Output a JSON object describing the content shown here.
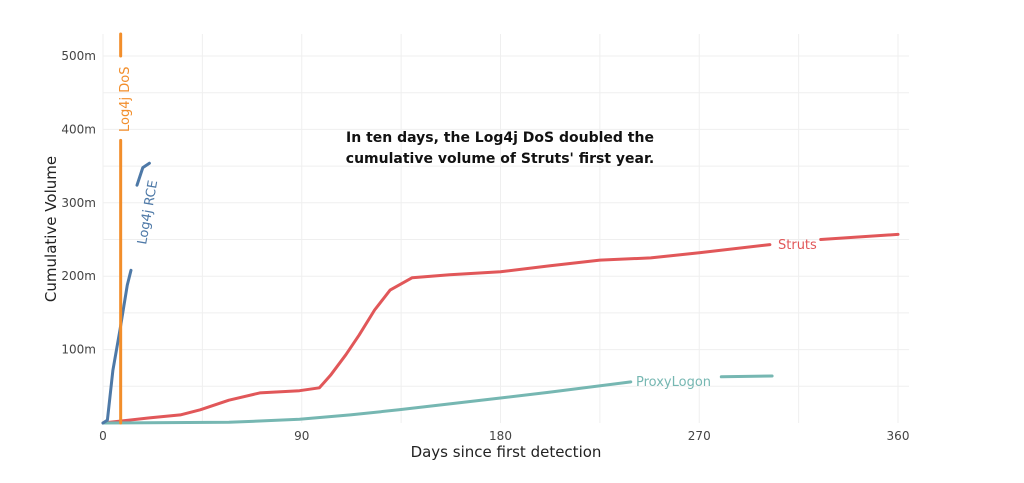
{
  "chart_data": {
    "type": "line",
    "xlabel": "Days since first detection",
    "ylabel": "Cumulative Volume",
    "xlim": [
      0,
      365
    ],
    "ylim": [
      0,
      530000000
    ],
    "xticks": [
      0,
      90,
      180,
      270,
      360
    ],
    "yticks": [
      100000000,
      200000000,
      300000000,
      400000000,
      500000000
    ],
    "ytick_labels": [
      "100m",
      "200m",
      "300m",
      "400m",
      "500m"
    ],
    "grid": true,
    "annotation": "In ten days, the Log4j DoS doubled the cumulative volume of Struts' first year.",
    "annotation_lines": [
      "In ten days, the Log4j DoS doubled the",
      "cumulative volume of Struts' first year."
    ],
    "series": [
      {
        "name": "Struts",
        "color": "#e15759",
        "x": [
          0,
          21,
          35,
          44,
          57,
          71,
          89,
          98,
          103,
          110,
          116,
          123,
          130,
          140,
          157,
          180,
          202,
          225,
          248,
          270,
          302,
          325,
          360
        ],
        "y": [
          0,
          7000000.0,
          11000000.0,
          18000000.0,
          31000000.0,
          41000000.0,
          44000000.0,
          48000000.0,
          65000000.0,
          93000000.0,
          120000000.0,
          154000000.0,
          181000000.0,
          198000000.0,
          202000000.0,
          206000000.0,
          214000000.0,
          222000000.0,
          225000000.0,
          232000000.0,
          243000000.0,
          250000000.0,
          257000000.0
        ]
      },
      {
        "name": "ProxyLogon",
        "color": "#76b7b2",
        "x": [
          0,
          57,
          89,
          112,
          134,
          157,
          180,
          202,
          239,
          280,
          303
        ],
        "y": [
          0,
          1000000.0,
          5000000.0,
          11000000.0,
          18000000.0,
          26000000.0,
          34000000.0,
          42000000.0,
          56000000.0,
          63000000.0,
          64000000.0
        ]
      },
      {
        "name": "Log4j RCE",
        "color": "#4e79a7",
        "x": [
          0,
          2,
          4.5,
          7.7,
          11,
          12.7,
          15.4,
          18,
          21
        ],
        "y": [
          0,
          4000000.0,
          72000000.0,
          127000000.0,
          188000000.0,
          208000000.0,
          324000000.0,
          348000000.0,
          354000000.0
        ]
      },
      {
        "name": "Log4j DoS",
        "color": "#f28e2b",
        "x": [
          8,
          8
        ],
        "y": [
          0,
          530000000.0
        ]
      }
    ]
  }
}
